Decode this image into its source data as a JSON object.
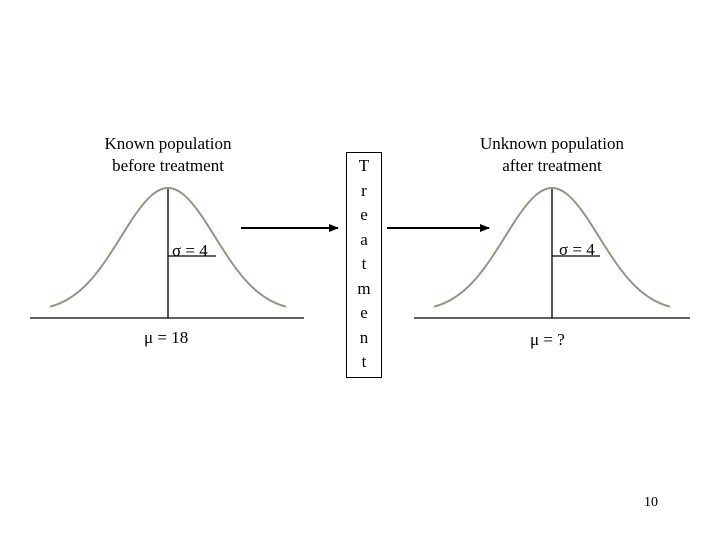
{
  "left_panel": {
    "caption_lines": [
      "Known population",
      "before treatment"
    ],
    "sigma_label": "σ = 4",
    "mu_label": "μ = 18"
  },
  "right_panel": {
    "caption_lines": [
      "Unknown population",
      "after treatment"
    ],
    "sigma_label": "σ = 4",
    "mu_label": "μ = ?"
  },
  "treatment_letters": [
    "T",
    "r",
    "e",
    "a",
    "t",
    "m",
    "e",
    "n",
    "t"
  ],
  "page_number": "10",
  "colors": {
    "curve": "#8a9a87",
    "ink": "#000000",
    "background": "#ffffff"
  }
}
